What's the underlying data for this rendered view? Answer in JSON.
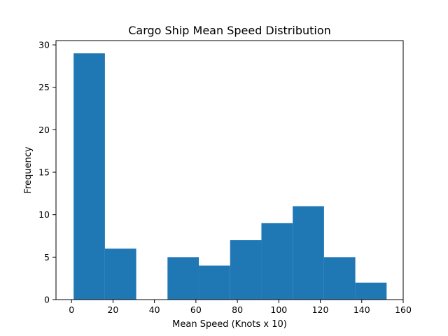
{
  "chart_data": {
    "type": "bar",
    "title": "Cargo Ship Mean Speed Distribution",
    "xlabel": "Mean Speed (Knots x 10)",
    "ylabel": "Frequency",
    "xlim": [
      -7.5,
      160
    ],
    "ylim": [
      0,
      30.5
    ],
    "xticks": [
      0,
      20,
      40,
      60,
      80,
      100,
      120,
      140,
      160
    ],
    "yticks": [
      0,
      5,
      10,
      15,
      20,
      25,
      30
    ],
    "bin_edges": [
      1,
      16.1,
      31.2,
      46.3,
      61.4,
      76.5,
      91.6,
      106.7,
      121.8,
      136.9,
      152
    ],
    "values": [
      29,
      6,
      0,
      5,
      4,
      7,
      9,
      11,
      5,
      2
    ],
    "bar_color": "#1f77b4",
    "grid": false,
    "legend": "none"
  }
}
